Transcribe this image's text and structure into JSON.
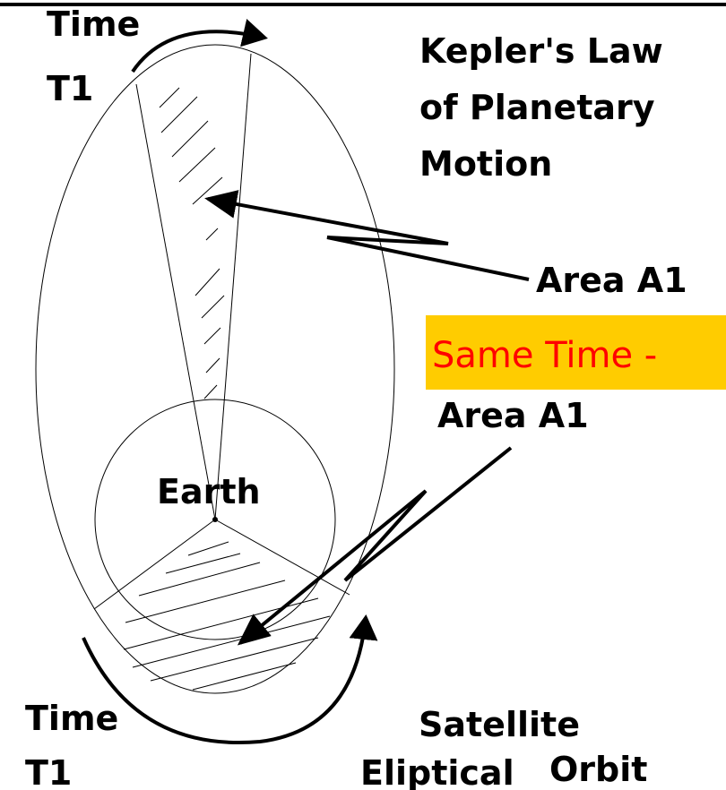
{
  "title": {
    "lines": [
      "Kepler's Law",
      "of Planetary",
      "Motion"
    ]
  },
  "labels": {
    "top_time": [
      "Time",
      "T1"
    ],
    "area_top": "Area A1",
    "same_time": "Same Time -",
    "area_bottom": "Area A1",
    "earth": "Earth",
    "bottom_time": [
      "Time",
      "T1"
    ],
    "orbit": [
      "Satellite",
      "Eliptical",
      "Orbit"
    ]
  }
}
